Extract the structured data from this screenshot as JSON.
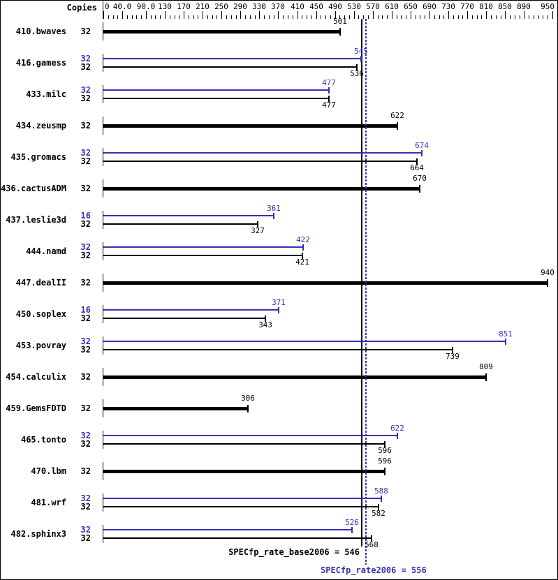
{
  "header": {
    "copies_label": "Copies"
  },
  "colors": {
    "base": "#000000",
    "peak": "#3333b3",
    "background": "#ffffff"
  },
  "axis": {
    "tick_values": [
      0,
      40,
      90,
      130,
      170,
      210,
      250,
      290,
      330,
      370,
      410,
      450,
      490,
      530,
      570,
      610,
      650,
      690,
      730,
      770,
      810,
      850,
      890,
      950
    ],
    "tick_labels": [
      "0",
      "40.0",
      "90.0",
      "130",
      "170",
      "210",
      "250",
      "290",
      "330",
      "370",
      "410",
      "450",
      "490",
      "530",
      "570",
      "610",
      "650",
      "690",
      "730",
      "770",
      "810",
      "850",
      "890",
      "950"
    ],
    "minor_tick_step": 10
  },
  "chart_data": {
    "type": "bar",
    "orientation": "horizontal",
    "title": "",
    "xlabel": "",
    "ylabel": "Copies",
    "xlim": [
      0,
      950
    ],
    "grid": false,
    "legend_position": "none",
    "categories": [
      "410.bwaves",
      "416.gamess",
      "433.milc",
      "434.zeusmp",
      "435.gromacs",
      "436.cactusADM",
      "437.leslie3d",
      "444.namd",
      "447.dealII",
      "450.soplex",
      "453.povray",
      "454.calculix",
      "459.GemsFDTD",
      "465.tonto",
      "470.lbm",
      "481.wrf",
      "482.sphinx3"
    ],
    "series": [
      {
        "name": "peak",
        "legend": "SPECfp_rate2006",
        "color": "#3333b3",
        "copies": [
          null,
          32,
          32,
          null,
          32,
          null,
          16,
          32,
          null,
          16,
          32,
          null,
          null,
          32,
          null,
          32,
          32
        ],
        "values": [
          null,
          545,
          477,
          null,
          674,
          null,
          361,
          422,
          null,
          371,
          851,
          null,
          null,
          622,
          null,
          588,
          526
        ]
      },
      {
        "name": "base",
        "legend": "SPECfp_rate_base2006",
        "color": "#000000",
        "copies": [
          32,
          32,
          32,
          32,
          32,
          32,
          32,
          32,
          32,
          32,
          32,
          32,
          32,
          32,
          32,
          32,
          32
        ],
        "values": [
          501,
          536,
          477,
          622,
          664,
          670,
          327,
          421,
          940,
          343,
          739,
          809,
          306,
          596,
          596,
          582,
          568
        ]
      }
    ],
    "reference_lines": [
      {
        "name": "base",
        "label": "SPECfp_rate_base2006 = 546",
        "value": 546,
        "style": "solid",
        "color": "#000000"
      },
      {
        "name": "peak",
        "label": "SPECfp_rate2006 = 556",
        "value": 556,
        "style": "dotted",
        "color": "#3333b3"
      }
    ]
  }
}
